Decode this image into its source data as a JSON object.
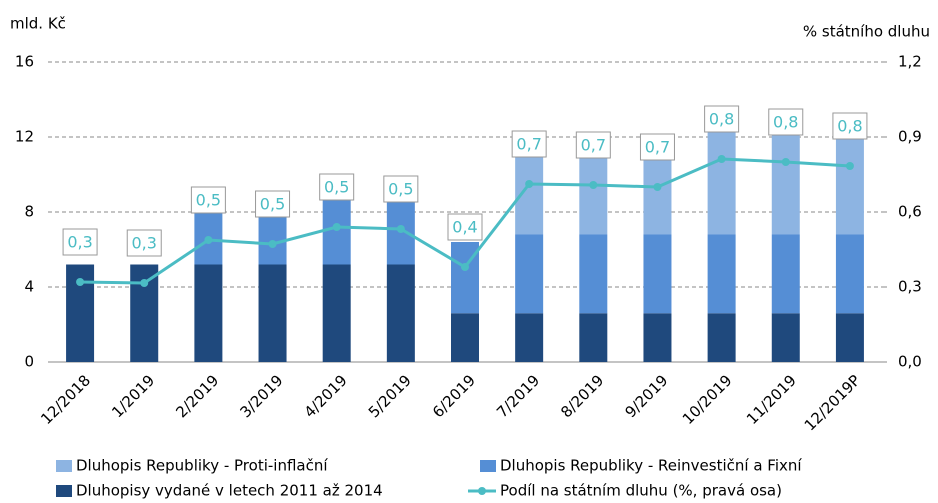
{
  "chart_data": {
    "type": "bar",
    "y_label": "mld. Kč",
    "y2_label": "% státního dluhu",
    "categories": [
      "12/2018",
      "1/2019",
      "2/2019",
      "3/2019",
      "4/2019",
      "5/2019",
      "6/2019",
      "7/2019",
      "8/2019",
      "9/2019",
      "10/2019",
      "11/2019",
      "12/2019P"
    ],
    "stacked": true,
    "series": [
      {
        "name": "Dluhopisy vydané v letech 2011 až 2014",
        "color": "#1f497d",
        "values": [
          5.2,
          5.2,
          5.2,
          5.2,
          5.2,
          5.2,
          2.6,
          2.6,
          2.6,
          2.6,
          2.6,
          2.6,
          2.6
        ]
      },
      {
        "name": "Dluhopis Republiky - Reinvestiční a Fixní",
        "color": "#558ed5",
        "values": [
          0,
          0,
          3.0,
          3.0,
          3.8,
          3.8,
          3.8,
          4.2,
          4.2,
          4.2,
          4.2,
          4.2,
          4.2
        ]
      },
      {
        "name": "Dluhopis Republiky - Proti-inflační",
        "color": "#8db4e2",
        "values": [
          0,
          0,
          0,
          0,
          0,
          0,
          0,
          5.0,
          5.0,
          5.0,
          6.1,
          6.1,
          6.1
        ]
      },
      {
        "name": "Podíl na státním dluhu (%, pravá osa)",
        "color": "#4bbcc4",
        "type": "line",
        "axis": "y2",
        "values": [
          0.32,
          0.316,
          0.488,
          0.472,
          0.54,
          0.532,
          0.38,
          0.712,
          0.708,
          0.7,
          0.812,
          0.8,
          0.784
        ],
        "value_labels": [
          "0,3",
          "0,3",
          "0,5",
          "0,5",
          "0,5",
          "0,5",
          "0,4",
          "0,7",
          "0,7",
          "0,7",
          "0,8",
          "0,8",
          "0,8"
        ]
      }
    ],
    "ylim": [
      0,
      16
    ],
    "yticks": [
      0,
      4,
      8,
      12,
      16
    ],
    "y2lim": [
      0,
      1.2
    ],
    "y2ticks": [
      {
        "value": 0,
        "label": "0,0"
      },
      {
        "value": 0.3,
        "label": "0,3"
      },
      {
        "value": 0.6,
        "label": "0,6"
      },
      {
        "value": 0.9,
        "label": "0,9"
      },
      {
        "value": 1.2,
        "label": "1,2"
      }
    ],
    "grid": true
  }
}
